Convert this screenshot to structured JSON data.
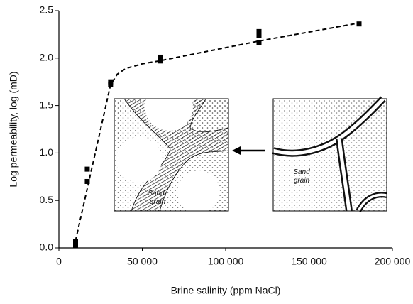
{
  "chart_data": {
    "type": "scatter",
    "x_label": "Brine salinity (ppm NaCl)",
    "y_label": "Log permeability, log (mD)",
    "xlim": [
      0,
      200000
    ],
    "ylim": [
      0,
      2.5
    ],
    "xticks": [
      0,
      {
        "value": 50000,
        "label": "50 000"
      },
      {
        "value": 100000,
        "label": "100 000"
      },
      {
        "value": 150000,
        "label": "150 000"
      },
      {
        "value": 200000,
        "label": "200 000"
      }
    ],
    "yticks": [
      {
        "value": 0,
        "label": "0.0"
      },
      0.5,
      {
        "value": 1,
        "label": "1.0"
      },
      1.5,
      {
        "value": 2,
        "label": "2.0"
      },
      2.5
    ],
    "series": [
      {
        "type": "scatter",
        "color": "#000000",
        "x": [
          10000,
          10000,
          17000,
          17000,
          31000,
          31000,
          61000,
          61000,
          120000,
          120000,
          120000,
          180000
        ],
        "values": [
          0.03,
          0.07,
          0.7,
          0.83,
          1.72,
          1.75,
          1.97,
          2.01,
          2.16,
          2.24,
          2.28,
          2.36
        ]
      },
      {
        "type": "line",
        "color": "#000000",
        "dashed": true,
        "x": [
          9000,
          31000,
          35000,
          40000,
          50000,
          60000,
          120000,
          180000
        ],
        "values": [
          0,
          1.72,
          1.83,
          1.89,
          1.94,
          1.97,
          2.18,
          2.37
        ]
      }
    ],
    "insets": [
      {
        "label": [
          "Sand",
          "grain"
        ]
      },
      {
        "label": [
          "Sand",
          "grain"
        ]
      }
    ]
  }
}
